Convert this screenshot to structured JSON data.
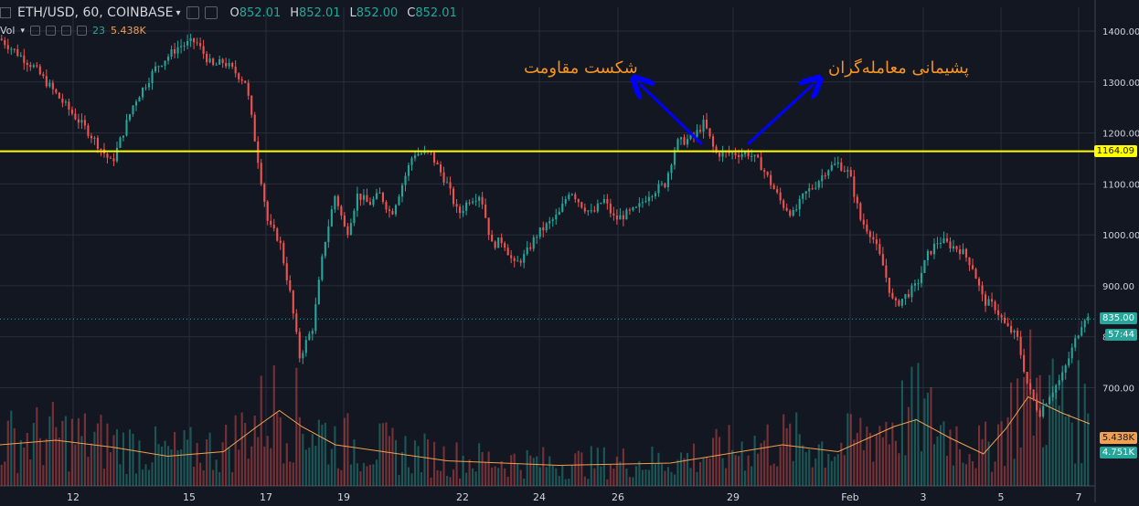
{
  "header": {
    "symbol": "ETH/USD, 60, COINBASE",
    "ohlc": [
      {
        "k": "O",
        "v": "852.01"
      },
      {
        "k": "H",
        "v": "852.01"
      },
      {
        "k": "L",
        "v": "852.00"
      },
      {
        "k": "C",
        "v": "852.01"
      }
    ]
  },
  "volume_legend": {
    "label": "Vol",
    "count": "23",
    "value": "5.438K"
  },
  "annotations": {
    "left": "شکست مقاومت",
    "right": "پشیمانی معامله‌گران"
  },
  "price_tags": {
    "resistance": "1164.09",
    "last": "835.00",
    "countdown": "57:44",
    "vol_ma": "5.438K",
    "vol_last": "4.751K"
  },
  "colors": {
    "background": "#131722",
    "up": "#26a69a",
    "down": "#ef5350",
    "resistance": "#ffff00",
    "arrow": "#0000ff",
    "annotation": "#f7931e",
    "vol_ma": "#f0a050"
  },
  "chart_data": {
    "type": "candlestick",
    "title": "ETH/USD, 60, COINBASE",
    "y_ticks": [
      1400,
      1300,
      1200,
      1100,
      1000,
      900,
      800,
      700
    ],
    "x_ticks": [
      "12",
      "15",
      "17",
      "19",
      "22",
      "24",
      "26",
      "29",
      "Feb",
      "3",
      "5",
      "7"
    ],
    "ylim": [
      590,
      1420
    ],
    "resistance_level": 1164.09,
    "price_path": [
      [
        0,
        1385
      ],
      [
        3,
        1330
      ],
      [
        6,
        1250
      ],
      [
        8,
        1200
      ],
      [
        10,
        1140
      ],
      [
        12,
        1260
      ],
      [
        14,
        1330
      ],
      [
        16,
        1370
      ],
      [
        17.5,
        1380
      ],
      [
        19,
        1330
      ],
      [
        20,
        1340
      ],
      [
        21,
        1320
      ],
      [
        22,
        1300
      ],
      [
        23,
        1160
      ],
      [
        24,
        1020
      ],
      [
        25,
        990
      ],
      [
        26,
        880
      ],
      [
        26.8,
        760
      ],
      [
        28,
        820
      ],
      [
        29,
        980
      ],
      [
        30,
        1080
      ],
      [
        31,
        1000
      ],
      [
        32,
        1080
      ],
      [
        33,
        1060
      ],
      [
        34,
        1080
      ],
      [
        35,
        1040
      ],
      [
        37,
        1160
      ],
      [
        38.5,
        1160
      ],
      [
        40,
        1100
      ],
      [
        41,
        1040
      ],
      [
        42,
        1070
      ],
      [
        43,
        1080
      ],
      [
        44,
        980
      ],
      [
        45,
        990
      ],
      [
        46,
        940
      ],
      [
        47,
        960
      ],
      [
        48,
        1000
      ],
      [
        49,
        1020
      ],
      [
        50,
        1040
      ],
      [
        51,
        1090
      ],
      [
        52,
        1060
      ],
      [
        53,
        1040
      ],
      [
        54,
        1070
      ],
      [
        55,
        1030
      ],
      [
        56,
        1040
      ],
      [
        57,
        1050
      ],
      [
        58,
        1080
      ],
      [
        59.5,
        1100
      ],
      [
        60.5,
        1180
      ],
      [
        62,
        1190
      ],
      [
        63,
        1220
      ],
      [
        64,
        1160
      ],
      [
        65,
        1160
      ],
      [
        66,
        1160
      ],
      [
        67,
        1160
      ],
      [
        68,
        1140
      ],
      [
        69,
        1100
      ],
      [
        70,
        1060
      ],
      [
        71,
        1040
      ],
      [
        72,
        1080
      ],
      [
        73,
        1100
      ],
      [
        74,
        1130
      ],
      [
        75,
        1140
      ],
      [
        76,
        1120
      ],
      [
        77,
        1030
      ],
      [
        78,
        1000
      ],
      [
        79,
        940
      ],
      [
        80,
        860
      ],
      [
        81,
        880
      ],
      [
        82,
        900
      ],
      [
        83,
        960
      ],
      [
        84,
        990
      ],
      [
        85,
        980
      ],
      [
        86,
        970
      ],
      [
        87,
        940
      ],
      [
        88,
        870
      ],
      [
        89,
        860
      ],
      [
        90,
        820
      ],
      [
        91,
        800
      ],
      [
        92,
        700
      ],
      [
        93,
        650
      ],
      [
        94,
        690
      ],
      [
        95,
        720
      ],
      [
        96,
        780
      ],
      [
        97,
        840
      ],
      [
        97.5,
        835
      ]
    ],
    "volume": {
      "ma_ylim": [
        0,
        12
      ],
      "ma_path": [
        [
          0,
          3.6
        ],
        [
          5,
          4.0
        ],
        [
          10,
          3.4
        ],
        [
          15,
          2.6
        ],
        [
          20,
          3.0
        ],
        [
          23,
          5.2
        ],
        [
          25,
          6.6
        ],
        [
          27,
          5.2
        ],
        [
          30,
          3.6
        ],
        [
          40,
          2.2
        ],
        [
          50,
          1.8
        ],
        [
          60,
          2.0
        ],
        [
          70,
          3.6
        ],
        [
          75,
          3.0
        ],
        [
          80,
          5.2
        ],
        [
          82,
          5.8
        ],
        [
          85,
          4.2
        ],
        [
          88,
          2.8
        ],
        [
          90,
          5.0
        ],
        [
          92,
          7.8
        ],
        [
          95,
          6.4
        ],
        [
          97.5,
          5.438
        ]
      ]
    }
  }
}
